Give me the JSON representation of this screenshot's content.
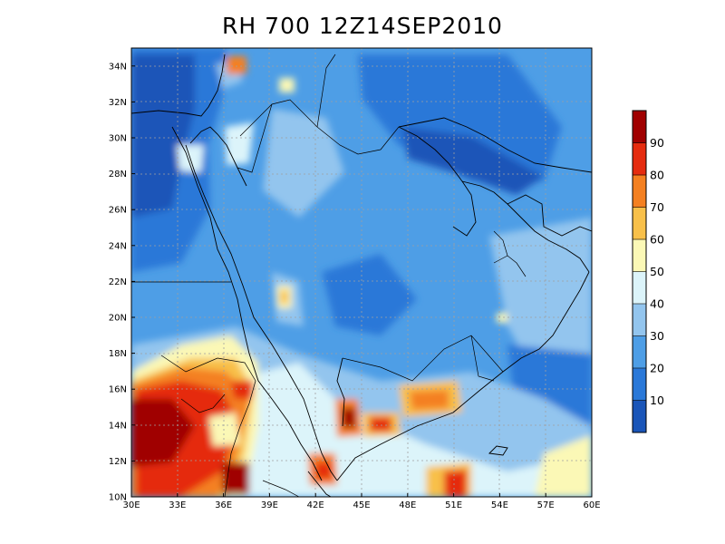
{
  "title": "RH 700  12Z14SEP2010",
  "map": {
    "lon_range": [
      30,
      60
    ],
    "lat_range": [
      10,
      35
    ],
    "x_ticks": [
      "30E",
      "33E",
      "36E",
      "39E",
      "42E",
      "45E",
      "48E",
      "51E",
      "54E",
      "57E",
      "60E"
    ],
    "y_ticks": [
      "10N",
      "12N",
      "14N",
      "16N",
      "18N",
      "20N",
      "22N",
      "24N",
      "26N",
      "28N",
      "30N",
      "32N",
      "34N"
    ],
    "grid": "dotted"
  },
  "colorbar": {
    "labels": [
      "10",
      "20",
      "30",
      "40",
      "50",
      "60",
      "70",
      "80",
      "90"
    ],
    "colors": [
      "#1a55b8",
      "#2a78d8",
      "#4e9ee6",
      "#93c5ee",
      "#dcf4fa",
      "#fbf8b6",
      "#f8c04a",
      "#f48021",
      "#e52c0f",
      "#a00000"
    ]
  }
}
